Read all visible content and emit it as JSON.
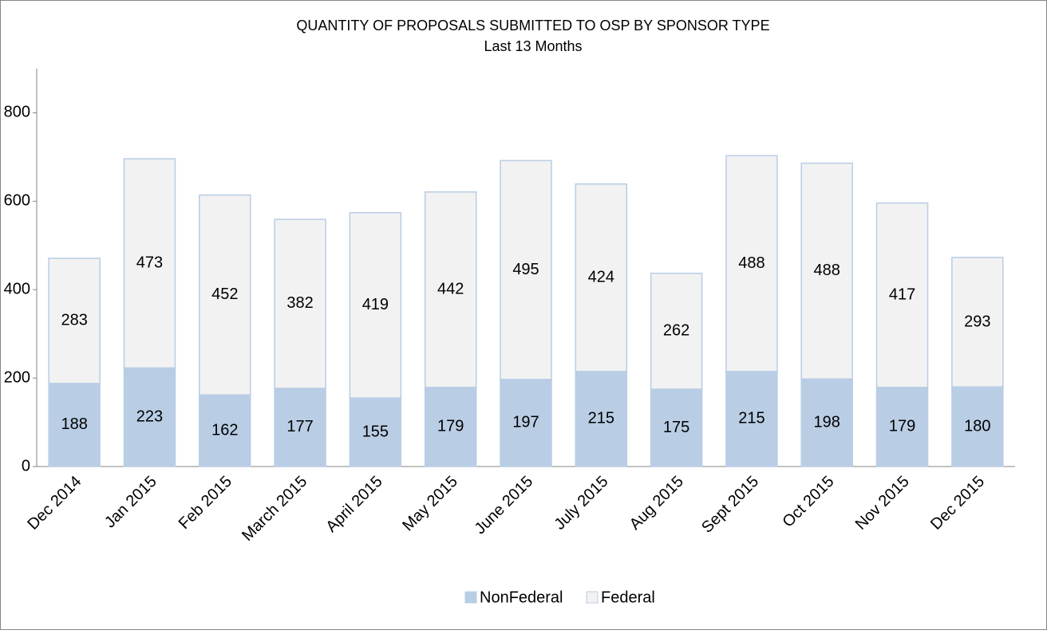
{
  "chart_data": {
    "type": "stacked_bar",
    "title": "QUANTITY OF PROPOSALS SUBMITTED TO OSP BY SPONSOR TYPE",
    "subtitle": "Last 13 Months",
    "categories": [
      "Dec 2014",
      "Jan 2015",
      "Feb 2015",
      "March 2015",
      "April 2015",
      "May 2015",
      "June 2015",
      "July 2015",
      "Aug 2015",
      "Sept 2015",
      "Oct 2015",
      "Nov 2015",
      "Dec 2015"
    ],
    "series": [
      {
        "name": "NonFederal",
        "color": "#b9cde5",
        "values": [
          188,
          223,
          162,
          177,
          155,
          179,
          197,
          215,
          175,
          215,
          198,
          179,
          180
        ]
      },
      {
        "name": "Federal",
        "color": "#f2f2f2",
        "values": [
          283,
          473,
          452,
          382,
          419,
          442,
          495,
          424,
          262,
          488,
          488,
          417,
          293
        ]
      }
    ],
    "ylim": [
      0,
      900
    ],
    "yticks": [
      0,
      200,
      400,
      600,
      800
    ],
    "grid": false,
    "legend": "bottom"
  }
}
